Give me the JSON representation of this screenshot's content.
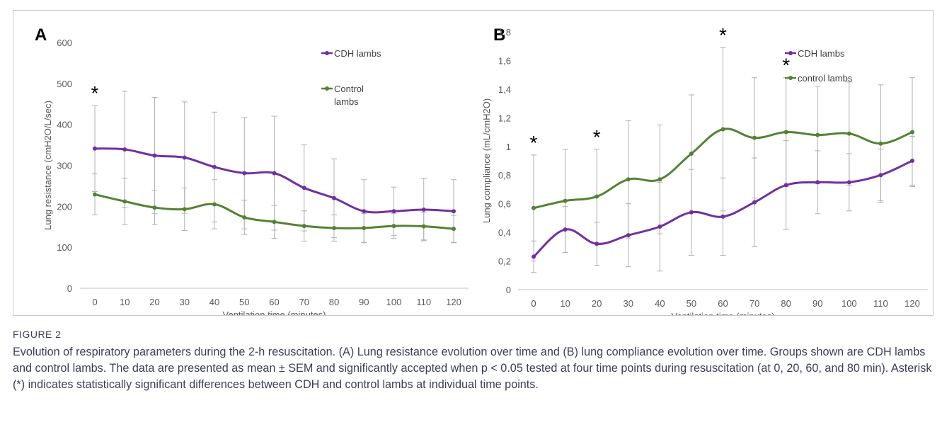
{
  "chart_data": [
    {
      "type": "line",
      "panel_label": "A",
      "x": [
        0,
        10,
        20,
        30,
        40,
        50,
        60,
        70,
        80,
        90,
        100,
        110,
        120
      ],
      "xlabel": "Ventilation time (minutes)",
      "ylabel": "Lung resistance (cmH2O/L/sec)",
      "ylim": [
        0,
        600
      ],
      "yticks": [
        "0",
        "100",
        "200",
        "300",
        "400",
        "500",
        "600"
      ],
      "grid": false,
      "legend_position": "top-right",
      "significance_marks": [
        0
      ],
      "series": [
        {
          "name": "CDH lambs",
          "color": "#7030a0",
          "values": [
            341,
            339,
            324,
            319,
            296,
            281,
            281,
            245,
            220,
            188,
            188,
            192,
            188
          ],
          "sem": [
            105,
            142,
            142,
            136,
            134,
            136,
            139,
            105,
            96,
            77,
            59,
            76,
            77
          ]
        },
        {
          "name": "Control lambs",
          "color": "#548235",
          "values": [
            229,
            212,
            197,
            193,
            205,
            173,
            162,
            152,
            147,
            147,
            152,
            151,
            145
          ],
          "sem": [
            50,
            57,
            42,
            52,
            60,
            42,
            40,
            37,
            32,
            35,
            30,
            33,
            33
          ]
        }
      ]
    },
    {
      "type": "line",
      "panel_label": "B",
      "x": [
        0,
        10,
        20,
        30,
        40,
        50,
        60,
        70,
        80,
        90,
        100,
        110,
        120
      ],
      "xlabel": "Ventilation time (minutes)",
      "ylabel": "Lung compliance (mL/cmH2O)",
      "ylim": [
        0,
        1.8
      ],
      "yticks": [
        "0",
        "0,2",
        "0,4",
        "0,6",
        "0,8",
        "1",
        "1,2",
        "1,4",
        "1,6",
        "1,8"
      ],
      "grid": false,
      "legend_position": "top-right",
      "significance_marks": [
        0,
        20,
        60,
        80
      ],
      "series": [
        {
          "name": "CDH lambs",
          "color": "#7030a0",
          "values": [
            0.23,
            0.42,
            0.32,
            0.38,
            0.44,
            0.54,
            0.51,
            0.61,
            0.73,
            0.75,
            0.75,
            0.8,
            0.9
          ],
          "sem": [
            0.11,
            0.16,
            0.15,
            0.22,
            0.31,
            0.3,
            0.27,
            0.31,
            0.31,
            0.22,
            0.2,
            0.18,
            0.17
          ]
        },
        {
          "name": "control lambs",
          "color": "#548235",
          "values": [
            0.57,
            0.62,
            0.65,
            0.77,
            0.77,
            0.95,
            1.12,
            1.06,
            1.1,
            1.08,
            1.09,
            1.02,
            1.1
          ],
          "sem": [
            0.37,
            0.36,
            0.33,
            0.41,
            0.38,
            0.41,
            0.57,
            0.42,
            0.38,
            0.34,
            0.36,
            0.41,
            0.38
          ]
        }
      ]
    }
  ],
  "caption": {
    "label": "FIGURE 2",
    "text": "Evolution of respiratory parameters during the 2-h resuscitation. (A) Lung resistance evolution over time and (B) lung compliance evolution over time. Groups shown are CDH lambs and control lambs. The data are presented as mean ± SEM and significantly accepted when p < 0.05 tested at four time points during resuscitation (at 0, 20, 60, and 80 min). Asterisk (*) indicates statistically significant differences between CDH and control lambs at individual time points."
  }
}
